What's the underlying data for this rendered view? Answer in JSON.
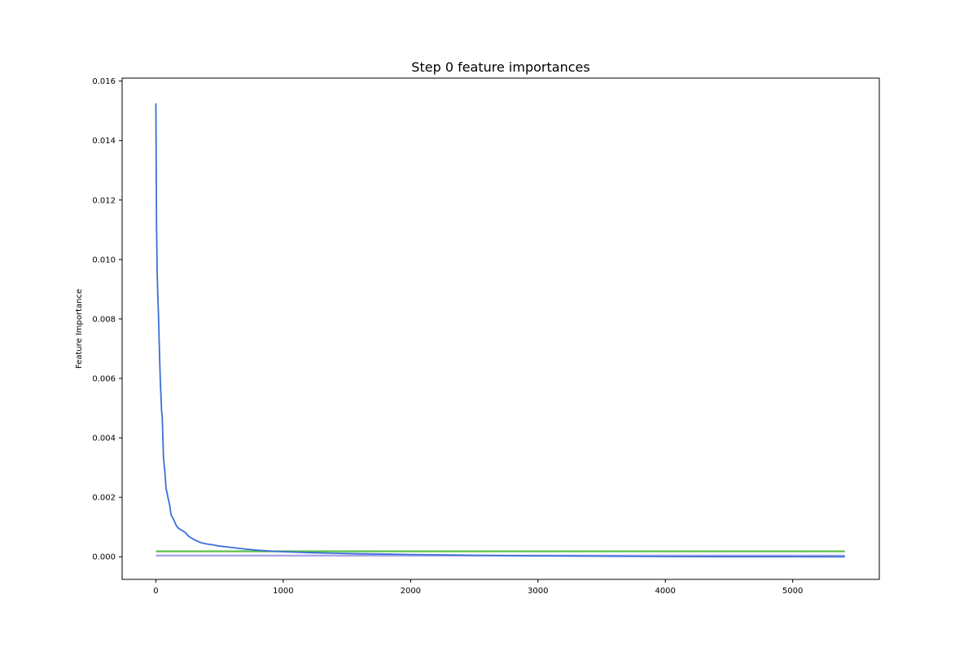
{
  "chart_data": {
    "type": "line",
    "title": "Step 0 feature importances",
    "xlabel": "",
    "ylabel": "Feature Importance",
    "xlim": [
      -265,
      5680
    ],
    "ylim": [
      -0.00076,
      0.0161
    ],
    "x_ticks": [
      0,
      1000,
      2000,
      3000,
      4000,
      5000
    ],
    "y_ticks": [
      0.0,
      0.002,
      0.004,
      0.006,
      0.008,
      0.01,
      0.012,
      0.014,
      0.016
    ],
    "x_tick_labels": [
      "0",
      "1000",
      "2000",
      "3000",
      "4000",
      "5000"
    ],
    "y_tick_labels": [
      "0.000",
      "0.002",
      "0.004",
      "0.006",
      "0.008",
      "0.010",
      "0.012",
      "0.014",
      "0.016"
    ],
    "grid": false,
    "series": [
      {
        "color": "#3b6fd6",
        "points": [
          [
            0,
            0.01525
          ],
          [
            5,
            0.0112
          ],
          [
            10,
            0.0096
          ],
          [
            15,
            0.0088
          ],
          [
            20,
            0.0082
          ],
          [
            25,
            0.0074
          ],
          [
            30,
            0.0066
          ],
          [
            35,
            0.0059
          ],
          [
            40,
            0.0054
          ],
          [
            45,
            0.0049
          ],
          [
            50,
            0.0047
          ],
          [
            55,
            0.004
          ],
          [
            60,
            0.0033
          ],
          [
            65,
            0.0031
          ],
          [
            70,
            0.0029
          ],
          [
            75,
            0.0026
          ],
          [
            80,
            0.0023
          ],
          [
            90,
            0.0021
          ],
          [
            100,
            0.0019
          ],
          [
            110,
            0.0017
          ],
          [
            120,
            0.0014
          ],
          [
            140,
            0.00125
          ],
          [
            160,
            0.00105
          ],
          [
            180,
            0.00095
          ],
          [
            200,
            0.0009
          ],
          [
            230,
            0.00082
          ],
          [
            260,
            0.00068
          ],
          [
            300,
            0.00058
          ],
          [
            350,
            0.00048
          ],
          [
            400,
            0.00043
          ],
          [
            450,
            0.0004
          ],
          [
            500,
            0.00036
          ],
          [
            600,
            0.00031
          ],
          [
            700,
            0.00026
          ],
          [
            800,
            0.00022
          ],
          [
            900,
            0.00019
          ],
          [
            1000,
            0.00017
          ],
          [
            1200,
            0.00014
          ],
          [
            1400,
            0.00012
          ],
          [
            1600,
            0.0001
          ],
          [
            1800,
            9e-05
          ],
          [
            2000,
            7.5e-05
          ],
          [
            2500,
            5e-05
          ],
          [
            3000,
            3e-05
          ],
          [
            3500,
            2e-05
          ],
          [
            4000,
            1e-05
          ],
          [
            4500,
            5e-06
          ],
          [
            5000,
            2e-06
          ],
          [
            5410,
            0.0
          ]
        ]
      },
      {
        "color": "#5cbf4a",
        "points": [
          [
            0,
            0.000185
          ],
          [
            5410,
            0.000185
          ]
        ]
      },
      {
        "color": "#a8a2e8",
        "points": [
          [
            0,
            4e-05
          ],
          [
            5410,
            4e-05
          ]
        ]
      }
    ]
  }
}
